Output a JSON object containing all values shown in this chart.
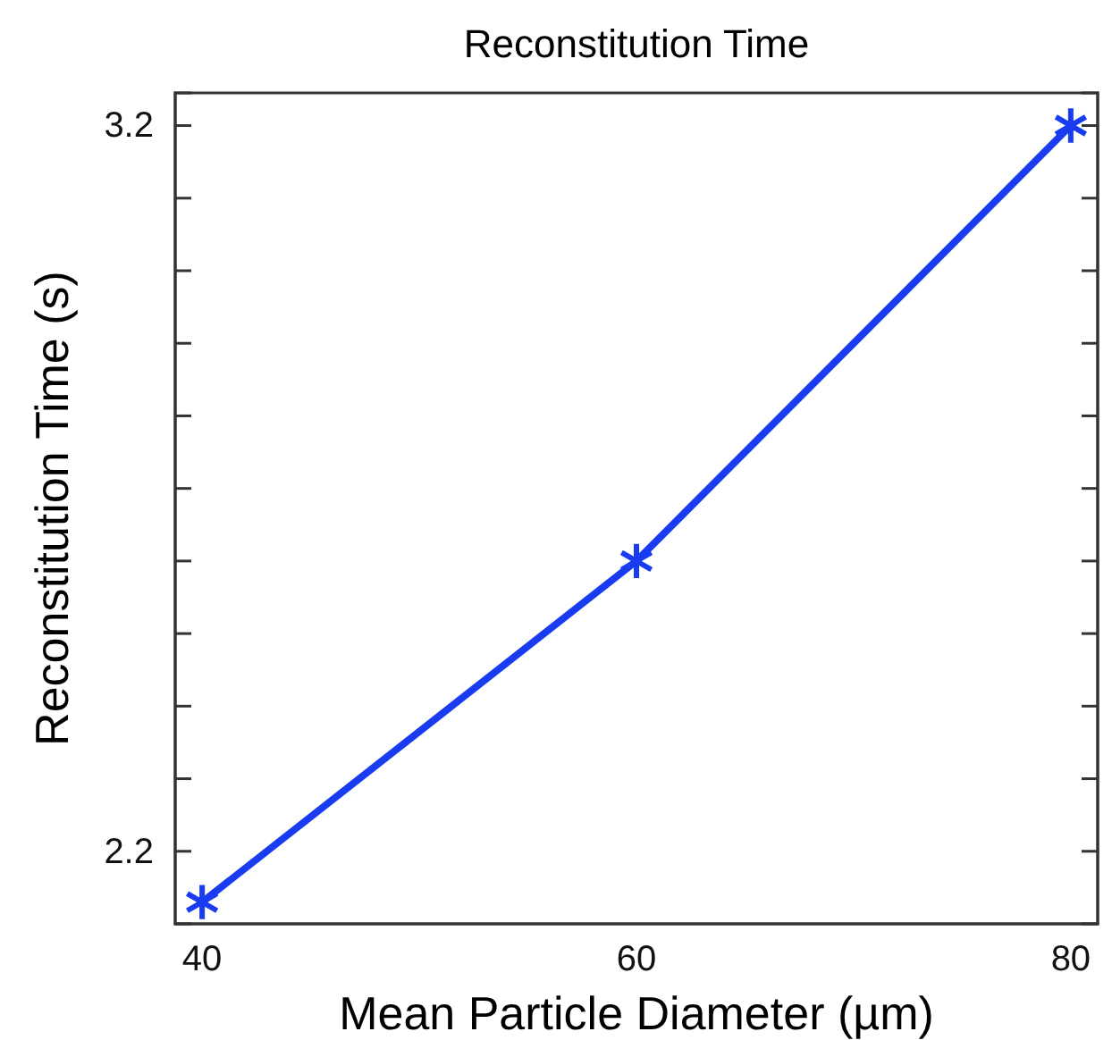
{
  "chart_data": {
    "type": "line",
    "title": "Reconstitution Time",
    "xlabel": "Mean Particle Diameter (µm)",
    "ylabel": "Reconstitution Time (s)",
    "x": [
      40,
      60,
      80
    ],
    "series": [
      {
        "color": "#1a3cf0",
        "values": [
          2.13,
          2.6,
          3.2
        ]
      }
    ],
    "xlim": [
      38.76,
      81.24
    ],
    "xticks": [
      40,
      60,
      80
    ],
    "ylim": [
      2.1,
      3.245
    ],
    "yticks": [
      2.2,
      {
        "value": 2.3,
        "label": null
      },
      {
        "value": 2.4,
        "label": null
      },
      {
        "value": 2.5,
        "label": null
      },
      {
        "value": 2.6,
        "label": null
      },
      {
        "value": 2.7,
        "label": null
      },
      {
        "value": 2.8,
        "label": null
      },
      {
        "value": 2.9,
        "label": null
      },
      {
        "value": 3.0,
        "label": null
      },
      {
        "value": 3.1,
        "label": null
      },
      3.2
    ],
    "marker": "cross",
    "grid": false
  }
}
